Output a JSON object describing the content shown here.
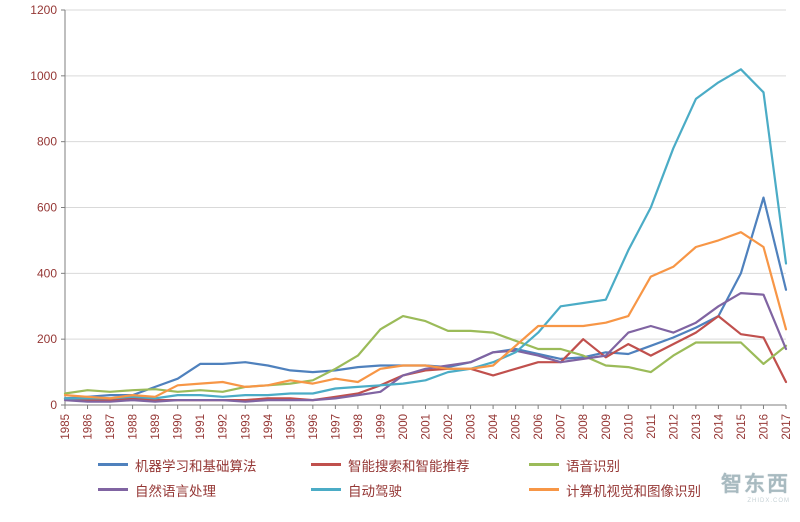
{
  "chart_data": {
    "type": "line",
    "title": "",
    "xlabel": "",
    "ylabel": "",
    "x": [
      1985,
      1986,
      1987,
      1988,
      1989,
      1990,
      1991,
      1992,
      1993,
      1994,
      1995,
      1996,
      1997,
      1998,
      1999,
      2000,
      2001,
      2002,
      2003,
      2004,
      2005,
      2006,
      2007,
      2008,
      2009,
      2010,
      2011,
      2012,
      2013,
      2014,
      2015,
      2016,
      2017
    ],
    "ylim": [
      0,
      1200
    ],
    "ytick_interval": 200,
    "grid": true,
    "legend_position": "bottom",
    "series": [
      {
        "name": "机器学习和基础算法",
        "color": "#4F81BD",
        "values": [
          20,
          25,
          30,
          30,
          55,
          80,
          125,
          125,
          130,
          120,
          105,
          100,
          105,
          115,
          120,
          120,
          120,
          115,
          130,
          160,
          170,
          155,
          140,
          145,
          160,
          155,
          180,
          205,
          235,
          270,
          400,
          630,
          350
        ]
      },
      {
        "name": "智能搜索和智能推荐",
        "color": "#C0504D",
        "values": [
          20,
          15,
          15,
          20,
          15,
          15,
          15,
          15,
          15,
          20,
          20,
          15,
          25,
          35,
          60,
          90,
          105,
          110,
          110,
          90,
          110,
          130,
          130,
          200,
          145,
          185,
          150,
          185,
          220,
          270,
          215,
          205,
          70
        ]
      },
      {
        "name": "语音识别",
        "color": "#9BBB59",
        "values": [
          35,
          45,
          40,
          45,
          48,
          40,
          45,
          40,
          55,
          60,
          65,
          75,
          110,
          150,
          230,
          270,
          255,
          225,
          225,
          220,
          195,
          170,
          170,
          150,
          120,
          115,
          100,
          150,
          190,
          190,
          190,
          125,
          180
        ]
      },
      {
        "name": "自然语言处理",
        "color": "#8064A2",
        "values": [
          15,
          10,
          10,
          15,
          10,
          15,
          15,
          15,
          10,
          15,
          15,
          15,
          20,
          30,
          40,
          90,
          110,
          120,
          130,
          160,
          165,
          150,
          130,
          140,
          150,
          220,
          240,
          220,
          250,
          300,
          340,
          335,
          170
        ]
      },
      {
        "name": "自动驾驶",
        "color": "#4BACC6",
        "values": [
          20,
          20,
          20,
          25,
          20,
          30,
          30,
          25,
          30,
          30,
          35,
          35,
          50,
          55,
          60,
          65,
          75,
          100,
          110,
          130,
          160,
          220,
          300,
          310,
          320,
          470,
          600,
          780,
          930,
          980,
          1020,
          950,
          430
        ]
      },
      {
        "name": "计算机视觉和图像识别",
        "color": "#F79646",
        "values": [
          30,
          25,
          20,
          30,
          25,
          60,
          65,
          70,
          55,
          60,
          75,
          65,
          80,
          70,
          110,
          120,
          120,
          110,
          110,
          120,
          180,
          240,
          240,
          240,
          250,
          270,
          390,
          420,
          480,
          500,
          525,
          480,
          230
        ]
      }
    ]
  },
  "legend_rows": [
    [
      0,
      1,
      2
    ],
    [
      3,
      4,
      5
    ]
  ],
  "watermark": {
    "text": "智东西",
    "sub": "ZHIDX.COM"
  }
}
